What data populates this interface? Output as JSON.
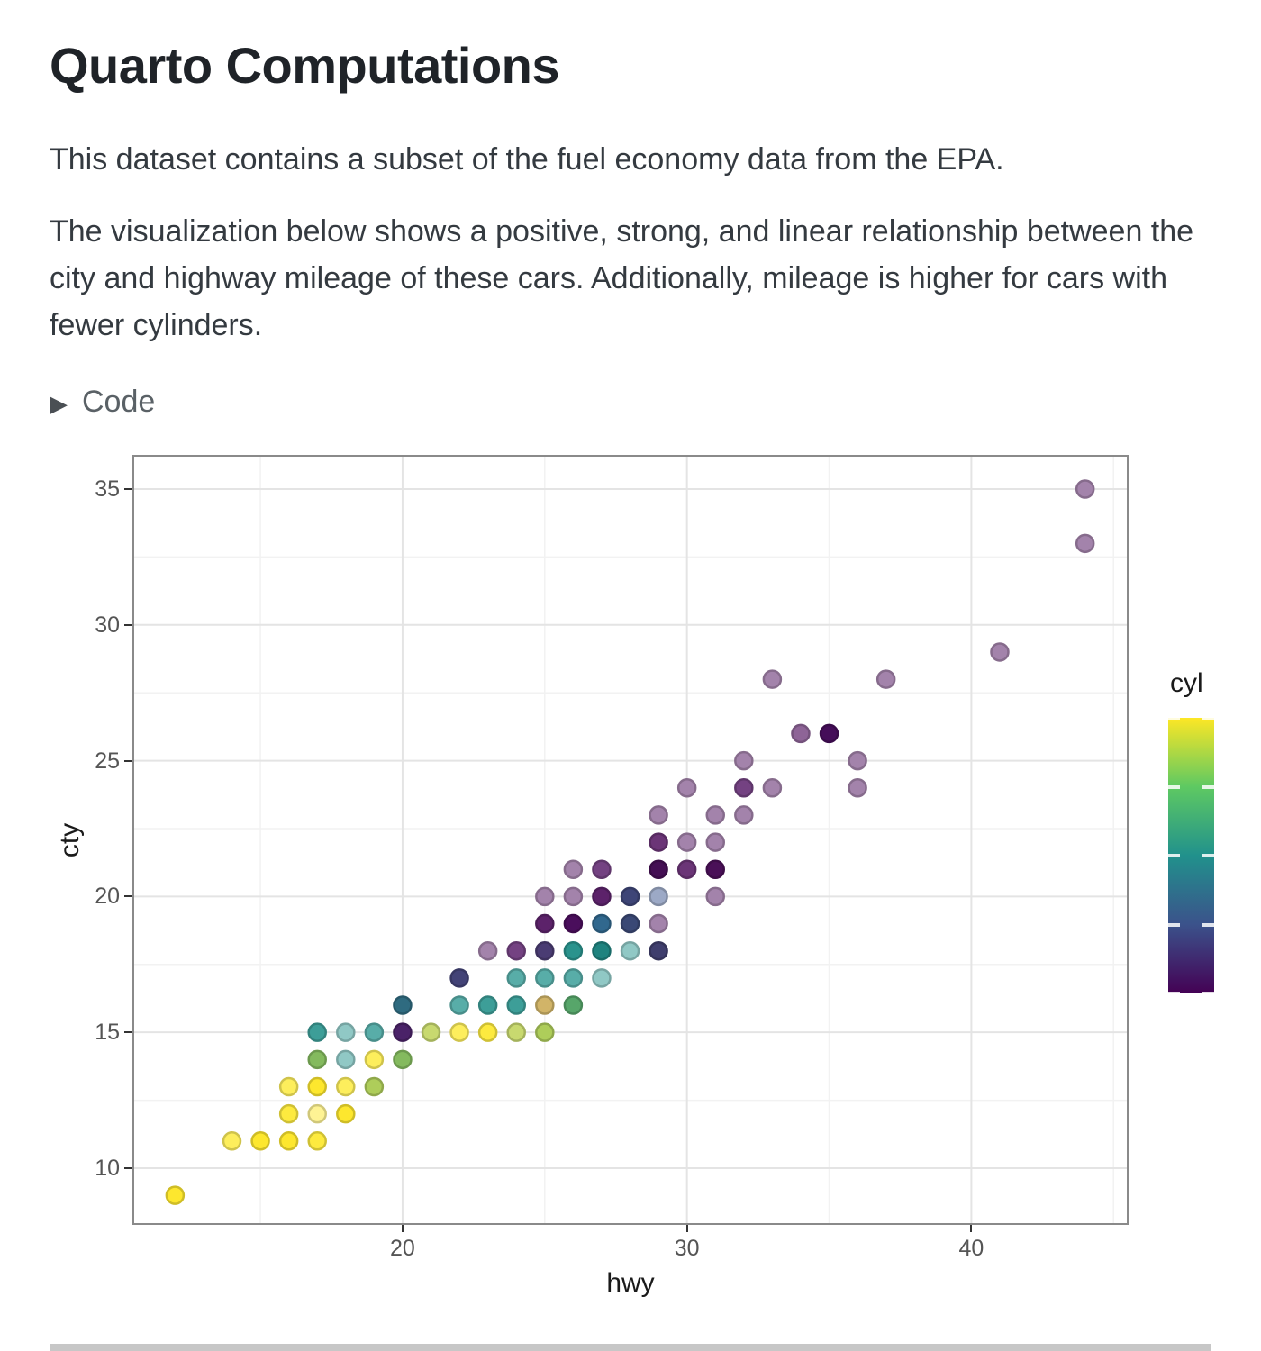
{
  "page": {
    "title": "Quarto Computations",
    "para1": "This dataset contains a subset of the fuel economy data from the EPA.",
    "para2_lines": [
      "The visualization below shows a positive, strong, and linear relationship between the",
      "city and highway mileage of these cars. Additionally, mileage is higher for cars with",
      "fewer cylinders."
    ],
    "code_label": "Code",
    "code_icon": "▶"
  },
  "colors": {
    "heading": "#1f2328",
    "body_text": "#343a40",
    "muted_text": "#5a6166",
    "panel_border": "#8a8a8a",
    "grid_major": "#e4e4e4",
    "grid_minor": "#f2f2f2",
    "tick_mark": "#333333",
    "tick_label": "#555555",
    "axis_title": "#1a1a1a",
    "next_section_strip": "#c7c7c7"
  },
  "chart_data": {
    "type": "scatter",
    "title": "",
    "xlabel": "hwy",
    "ylabel": "cty",
    "xlim": [
      10.5,
      45.53
    ],
    "ylim": [
      7.91,
      36.26
    ],
    "x_ticks": [
      20,
      30,
      40
    ],
    "x_minor": [
      15,
      25,
      35,
      45
    ],
    "y_ticks": [
      10,
      15,
      20,
      25,
      30,
      35
    ],
    "y_minor": [
      12.5,
      17.5,
      22.5,
      27.5,
      32.5
    ],
    "grid": true,
    "legend": {
      "title": "cyl",
      "position": "right",
      "min": 4,
      "max": 8,
      "tick_values": [
        8,
        7,
        6,
        5,
        4
      ],
      "viridis_stops_top_to_bottom": [
        "#FDE725",
        "#5EC962",
        "#21918C",
        "#3B528B",
        "#440154"
      ]
    },
    "point_style": {
      "alpha_note": "alpha-blended colors as rendered on white",
      "radius_px": 9.5
    },
    "points": [
      {
        "hwy": 12,
        "cty": 9,
        "cyl": 8,
        "color": "#FDE72E"
      },
      {
        "hwy": 14,
        "cty": 11,
        "cyl": 8,
        "color": "#FDEE5C"
      },
      {
        "hwy": 15,
        "cty": 11,
        "cyl": 8,
        "color": "#FDE72E"
      },
      {
        "hwy": 16,
        "cty": 11,
        "cyl": 8,
        "color": "#FDE72E"
      },
      {
        "hwy": 17,
        "cty": 11,
        "cyl": 8,
        "color": "#FDEA3F"
      },
      {
        "hwy": 16,
        "cty": 12,
        "cyl": 8,
        "color": "#FDEA3F"
      },
      {
        "hwy": 17,
        "cty": 12,
        "cyl": 8,
        "color": "#FEF394"
      },
      {
        "hwy": 18,
        "cty": 12,
        "cyl": 8,
        "color": "#FDE72E"
      },
      {
        "hwy": 16,
        "cty": 13,
        "cyl": 8,
        "color": "#FDEE5C"
      },
      {
        "hwy": 17,
        "cty": 13,
        "cyl": 8,
        "color": "#FDE72E"
      },
      {
        "hwy": 18,
        "cty": 13,
        "cyl": 8,
        "color": "#FDEE5C"
      },
      {
        "hwy": 19,
        "cty": 13,
        "cyl": "mixed",
        "color": "#AECD5A"
      },
      {
        "hwy": 17,
        "cty": 14,
        "cyl": "mixed",
        "color": "#84BA5E"
      },
      {
        "hwy": 18,
        "cty": 14,
        "cyl": 6,
        "color": "#90C8C5"
      },
      {
        "hwy": 19,
        "cty": 14,
        "cyl": 8,
        "color": "#FDEE5C"
      },
      {
        "hwy": 20,
        "cty": 14,
        "cyl": "mixed",
        "color": "#84BA5E"
      },
      {
        "hwy": 17,
        "cty": 15,
        "cyl": 6,
        "color": "#3D9E98"
      },
      {
        "hwy": 18,
        "cty": 15,
        "cyl": 6,
        "color": "#90C8C5"
      },
      {
        "hwy": 19,
        "cty": 15,
        "cyl": 6,
        "color": "#58ADA8"
      },
      {
        "hwy": 20,
        "cty": 15,
        "cyl": 4,
        "color": "#4A2268"
      },
      {
        "hwy": 21,
        "cty": 15,
        "cyl": "mixed",
        "color": "#C8D96F"
      },
      {
        "hwy": 22,
        "cty": 15,
        "cyl": 8,
        "color": "#FDEE5C"
      },
      {
        "hwy": 23,
        "cty": 15,
        "cyl": 8,
        "color": "#FDEA3F"
      },
      {
        "hwy": 24,
        "cty": 15,
        "cyl": "mixed",
        "color": "#C8D96F"
      },
      {
        "hwy": 25,
        "cty": 15,
        "cyl": "mixed",
        "color": "#AECD5A"
      },
      {
        "hwy": 20,
        "cty": 16,
        "cyl": "mixed",
        "color": "#2F6B80"
      },
      {
        "hwy": 22,
        "cty": 16,
        "cyl": 6,
        "color": "#58ADA8"
      },
      {
        "hwy": 23,
        "cty": 16,
        "cyl": 6,
        "color": "#3D9E98"
      },
      {
        "hwy": 24,
        "cty": 16,
        "cyl": 6,
        "color": "#3D9E98"
      },
      {
        "hwy": 25,
        "cty": 16,
        "cyl": "mixed",
        "color": "#D1B468"
      },
      {
        "hwy": 26,
        "cty": 16,
        "cyl": "mixed",
        "color": "#57A66A"
      },
      {
        "hwy": 22,
        "cty": 17,
        "cyl": "mixed",
        "color": "#434377"
      },
      {
        "hwy": 24,
        "cty": 17,
        "cyl": 6,
        "color": "#58ADA8"
      },
      {
        "hwy": 25,
        "cty": 17,
        "cyl": 6,
        "color": "#58ADA8"
      },
      {
        "hwy": 26,
        "cty": 17,
        "cyl": 6,
        "color": "#58ADA8"
      },
      {
        "hwy": 27,
        "cty": 17,
        "cyl": 6,
        "color": "#90C8C5"
      },
      {
        "hwy": 23,
        "cty": 18,
        "cyl": 4,
        "color": "#A383AB"
      },
      {
        "hwy": 24,
        "cty": 18,
        "cyl": 4,
        "color": "#744282"
      },
      {
        "hwy": 25,
        "cty": 18,
        "cyl": "mixed",
        "color": "#4A3C73"
      },
      {
        "hwy": 26,
        "cty": 18,
        "cyl": 6,
        "color": "#2A938D"
      },
      {
        "hwy": 27,
        "cty": 18,
        "cyl": 6,
        "color": "#1F837F"
      },
      {
        "hwy": 28,
        "cty": 18,
        "cyl": 6,
        "color": "#90C8C5"
      },
      {
        "hwy": 29,
        "cty": 18,
        "cyl": "mixed",
        "color": "#3F3E6D"
      },
      {
        "hwy": 25,
        "cty": 19,
        "cyl": 4,
        "color": "#5C226A"
      },
      {
        "hwy": 26,
        "cty": 19,
        "cyl": 4,
        "color": "#4A0E5C"
      },
      {
        "hwy": 27,
        "cty": 19,
        "cyl": "mixed",
        "color": "#31688E"
      },
      {
        "hwy": 28,
        "cty": 19,
        "cyl": "mixed",
        "color": "#3A4875"
      },
      {
        "hwy": 29,
        "cty": 19,
        "cyl": 4,
        "color": "#A383AB"
      },
      {
        "hwy": 25,
        "cty": 20,
        "cyl": 4,
        "color": "#A383AB"
      },
      {
        "hwy": 26,
        "cty": 20,
        "cyl": 4,
        "color": "#A383AB"
      },
      {
        "hwy": 27,
        "cty": 20,
        "cyl": 4,
        "color": "#5C226A"
      },
      {
        "hwy": 28,
        "cty": 20,
        "cyl": 5,
        "color": "#3E4577"
      },
      {
        "hwy": 29,
        "cty": 20,
        "cyl": 5,
        "color": "#9CA9C6"
      },
      {
        "hwy": 31,
        "cty": 20,
        "cyl": 4,
        "color": "#A383AB"
      },
      {
        "hwy": 26,
        "cty": 21,
        "cyl": 4,
        "color": "#A383AB"
      },
      {
        "hwy": 27,
        "cty": 21,
        "cyl": 4,
        "color": "#744282"
      },
      {
        "hwy": 29,
        "cty": 21,
        "cyl": 4,
        "color": "#440F54"
      },
      {
        "hwy": 30,
        "cty": 21,
        "cyl": 4,
        "color": "#6B3577"
      },
      {
        "hwy": 31,
        "cty": 21,
        "cyl": 4,
        "color": "#4A1058"
      },
      {
        "hwy": 29,
        "cty": 22,
        "cyl": 4,
        "color": "#6B3577"
      },
      {
        "hwy": 30,
        "cty": 22,
        "cyl": 4,
        "color": "#A383AB"
      },
      {
        "hwy": 31,
        "cty": 22,
        "cyl": 4,
        "color": "#A383AB"
      },
      {
        "hwy": 29,
        "cty": 23,
        "cyl": 4,
        "color": "#A383AB"
      },
      {
        "hwy": 31,
        "cty": 23,
        "cyl": 4,
        "color": "#A383AB"
      },
      {
        "hwy": 32,
        "cty": 23,
        "cyl": 4,
        "color": "#A383AB"
      },
      {
        "hwy": 30,
        "cty": 24,
        "cyl": 4,
        "color": "#A383AB"
      },
      {
        "hwy": 32,
        "cty": 24,
        "cyl": 4,
        "color": "#744282"
      },
      {
        "hwy": 33,
        "cty": 24,
        "cyl": 4,
        "color": "#A383AB"
      },
      {
        "hwy": 36,
        "cty": 24,
        "cyl": 4,
        "color": "#A383AB"
      },
      {
        "hwy": 32,
        "cty": 25,
        "cyl": 4,
        "color": "#A383AB"
      },
      {
        "hwy": 36,
        "cty": 25,
        "cyl": 4,
        "color": "#A383AB"
      },
      {
        "hwy": 34,
        "cty": 26,
        "cyl": 4,
        "color": "#8E6497"
      },
      {
        "hwy": 35,
        "cty": 26,
        "cyl": 4,
        "color": "#450D59"
      },
      {
        "hwy": 33,
        "cty": 28,
        "cyl": 4,
        "color": "#A383AB"
      },
      {
        "hwy": 37,
        "cty": 28,
        "cyl": 4,
        "color": "#A383AB"
      },
      {
        "hwy": 41,
        "cty": 29,
        "cyl": 4,
        "color": "#A383AB"
      },
      {
        "hwy": 44,
        "cty": 33,
        "cyl": 4,
        "color": "#A383AB"
      },
      {
        "hwy": 44,
        "cty": 35,
        "cyl": 4,
        "color": "#A383AB"
      }
    ]
  }
}
